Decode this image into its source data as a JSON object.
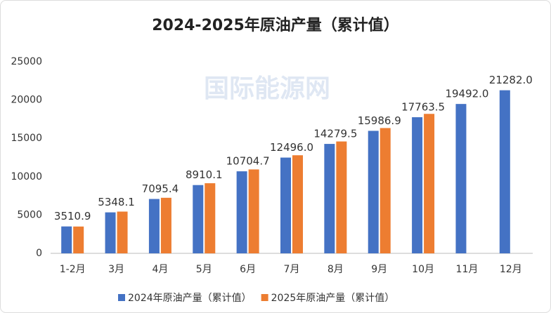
{
  "chart_data": {
    "type": "bar",
    "title": "2024-2025年原油产量（累计值）",
    "watermark": "国际能源网",
    "categories": [
      "1-2月",
      "3月",
      "4月",
      "5月",
      "6月",
      "7月",
      "8月",
      "9月",
      "10月",
      "11月",
      "12月"
    ],
    "series": [
      {
        "name": "2024年原油产量（累计值）",
        "color": "#4472c4",
        "values": [
          3510.9,
          5348.1,
          7095.4,
          8910.1,
          10704.7,
          12496.0,
          14279.5,
          15986.9,
          17763.5,
          19492.0,
          21282.0
        ],
        "value_labels": [
          "3510.9",
          "5348.1",
          "7095.4",
          "8910.1",
          "10704.7",
          "12496.0",
          "14279.5",
          "15986.9",
          "17763.5",
          "19492.0",
          "21282.0"
        ]
      },
      {
        "name": "2025年原油产量（累计值）",
        "color": "#ed7d31",
        "values": [
          3500,
          5450,
          7250,
          9150,
          10950,
          12800,
          14600,
          16350,
          18200,
          null,
          null
        ]
      }
    ],
    "ylim": [
      0,
      25000
    ],
    "yticks": [
      0,
      5000,
      10000,
      15000,
      20000,
      25000
    ],
    "grid": false
  }
}
